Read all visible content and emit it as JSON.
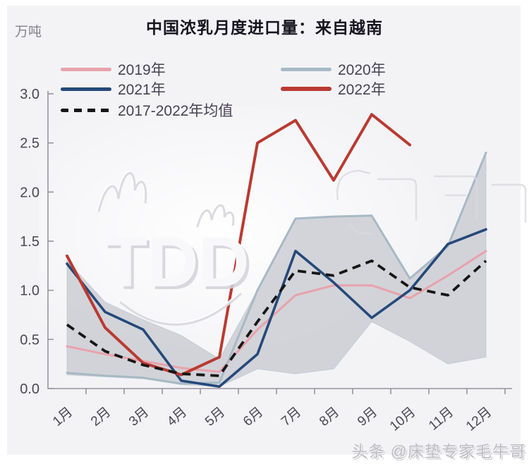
{
  "header": {
    "unit_label": "万吨",
    "title": "中国浓乳月度进口量：来自越南"
  },
  "watermarks": {
    "logo_text": "TDD",
    "footer_text": "头条 @床垫专家毛牛哥"
  },
  "chart_data": {
    "type": "line",
    "title": "中国浓乳月度进口量：来自越南",
    "ylabel": "万吨",
    "ylim": [
      0,
      3.0
    ],
    "yticks": [
      "0.0",
      "0.5",
      "1.0",
      "1.5",
      "2.0",
      "2.5",
      "3.0"
    ],
    "grid": false,
    "legend_position": "top",
    "categories": [
      "1月",
      "2月",
      "3月",
      "4月",
      "5月",
      "6月",
      "7月",
      "8月",
      "9月",
      "10月",
      "11月",
      "12月"
    ],
    "series": [
      {
        "name": "2019年",
        "color": "#e8a2ab",
        "style": "solid",
        "values": [
          0.43,
          0.35,
          0.28,
          0.21,
          0.17,
          0.6,
          0.95,
          1.05,
          1.05,
          0.92,
          1.15,
          1.4
        ]
      },
      {
        "name": "2020年",
        "color": "#a7b9c5",
        "style": "solid",
        "values": [
          0.16,
          0.13,
          0.11,
          0.05,
          0.06,
          1.0,
          1.73,
          1.75,
          1.76,
          1.12,
          1.45,
          2.4
        ]
      },
      {
        "name": "2021年",
        "color": "#25497a",
        "style": "solid",
        "values": [
          1.27,
          0.78,
          0.6,
          0.08,
          0.02,
          0.35,
          1.4,
          1.08,
          0.72,
          1.0,
          1.47,
          1.62
        ]
      },
      {
        "name": "2022年",
        "color": "#ba3a31",
        "style": "solid",
        "values": [
          1.35,
          0.62,
          0.26,
          0.14,
          0.32,
          2.5,
          2.73,
          2.12,
          2.79,
          2.48
        ]
      },
      {
        "name": "2017-2022年均值",
        "color": "#161616",
        "style": "dashed",
        "values": [
          0.65,
          0.38,
          0.24,
          0.15,
          0.13,
          0.68,
          1.2,
          1.15,
          1.3,
          1.03,
          0.95,
          1.3
        ]
      }
    ],
    "range_band": {
      "note": "shaded historical min-max band behind the lines (no legend entry)",
      "fill": "#cbccd2",
      "top": [
        1.3,
        0.88,
        0.7,
        0.54,
        0.3,
        1.0,
        1.73,
        1.75,
        1.76,
        1.12,
        1.45,
        2.4
      ],
      "bottom": [
        0.14,
        0.12,
        0.1,
        0.04,
        0.02,
        0.2,
        0.15,
        0.2,
        0.68,
        0.48,
        0.25,
        0.32
      ]
    }
  }
}
